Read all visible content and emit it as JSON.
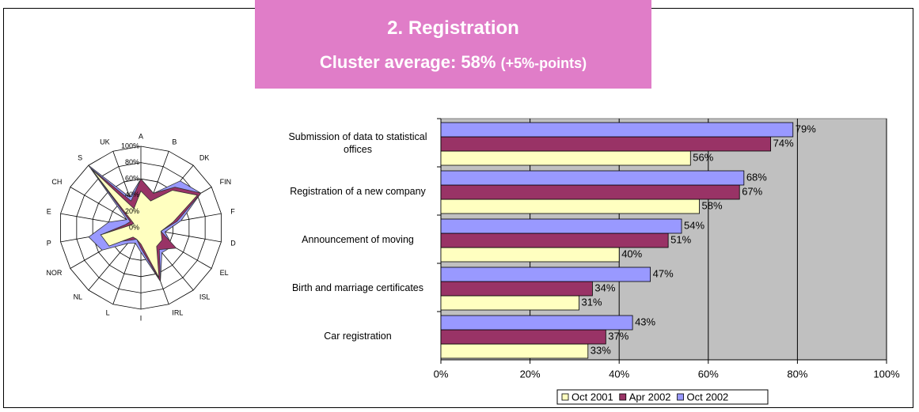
{
  "header": {
    "title": "2. Registration",
    "subtitle": "Cluster average: 58%",
    "subtitle_note": "(+5%-points)"
  },
  "chart_data": [
    {
      "type": "radar",
      "categories": [
        "A",
        "B",
        "DK",
        "FIN",
        "F",
        "D",
        "EL",
        "ISL",
        "IRL",
        "I",
        "L",
        "NL",
        "NOR",
        "P",
        "E",
        "CH",
        "S",
        "UK"
      ],
      "series": [
        {
          "name": "Oct 2001",
          "color": "#ffffc0",
          "values": [
            45,
            35,
            60,
            80,
            40,
            25,
            30,
            30,
            65,
            20,
            15,
            15,
            45,
            50,
            15,
            10,
            95,
            25
          ]
        },
        {
          "name": "Apr 2002",
          "color": "#993366",
          "values": [
            60,
            45,
            65,
            85,
            45,
            25,
            50,
            35,
            70,
            25,
            15,
            20,
            35,
            50,
            20,
            15,
            95,
            35
          ]
        },
        {
          "name": "Oct 2002",
          "color": "#9999ff",
          "values": [
            60,
            45,
            75,
            85,
            50,
            30,
            45,
            40,
            70,
            30,
            20,
            25,
            55,
            65,
            40,
            20,
            100,
            40
          ]
        }
      ],
      "ylim": [
        0,
        100
      ],
      "yticks": [
        {
          "value": 0,
          "label": "0%"
        },
        {
          "value": 20,
          "label": "20%"
        },
        {
          "value": 40,
          "label": "40%"
        },
        {
          "value": 60,
          "label": "60%"
        },
        {
          "value": 80,
          "label": "80%"
        },
        {
          "value": 100,
          "label": "100%"
        }
      ],
      "grid": true
    },
    {
      "type": "hbar",
      "categories": [
        "Submission of data to statistical offices",
        "Registration of a new company",
        "Announcement of moving",
        "Birth and marriage certificates",
        "Car registration"
      ],
      "series": [
        {
          "name": "Oct 2001",
          "color": "#ffffc0",
          "values": [
            56,
            58,
            40,
            31,
            33
          ],
          "value_labels": [
            "56%",
            "58%",
            "40%",
            "31%",
            "33%"
          ]
        },
        {
          "name": "Apr 2002",
          "color": "#993366",
          "values": [
            74,
            67,
            51,
            34,
            37
          ],
          "value_labels": [
            "74%",
            "67%",
            "51%",
            "34%",
            "37%"
          ]
        },
        {
          "name": "Oct 2002",
          "color": "#9999ff",
          "values": [
            79,
            68,
            54,
            47,
            43
          ],
          "value_labels": [
            "79%",
            "68%",
            "54%",
            "47%",
            "43%"
          ]
        }
      ],
      "xlim": [
        0,
        100
      ],
      "xticks": [
        {
          "value": 0,
          "label": "0%"
        },
        {
          "value": 20,
          "label": "20%"
        },
        {
          "value": 40,
          "label": "40%"
        },
        {
          "value": 60,
          "label": "60%"
        },
        {
          "value": 80,
          "label": "80%"
        },
        {
          "value": 100,
          "label": "100%"
        }
      ],
      "grid": true,
      "legend": "bottom"
    }
  ]
}
